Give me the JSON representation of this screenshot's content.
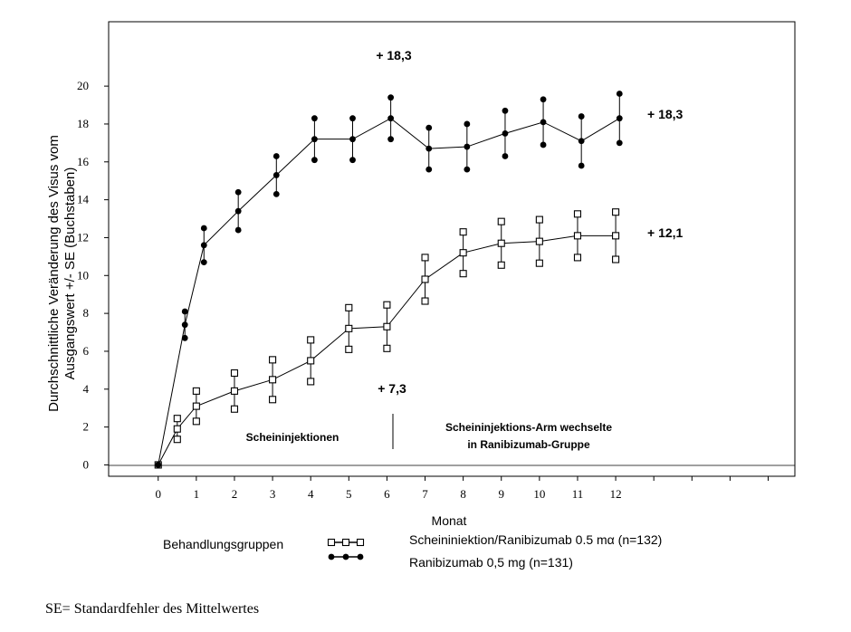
{
  "chart_data": {
    "type": "line",
    "xlabel": "Monat",
    "ylabel_line1": "Durchschnittliche Veränderung des Visus vom",
    "ylabel_line2": "Ausgangswert +/- SE (Buchstaben)",
    "xlim": [
      -1.3,
      16.7
    ],
    "ylim": [
      -0.6,
      23.4
    ],
    "x_ticks": [
      0,
      1,
      2,
      3,
      4,
      5,
      6,
      7,
      8,
      9,
      10,
      11,
      12
    ],
    "x_tick_labels": [
      "0",
      "1",
      "2",
      "3",
      "4",
      "5",
      "6",
      "7",
      "8",
      "9",
      "10",
      "11",
      "12"
    ],
    "extra_tick_marks": [
      13,
      14,
      15,
      16
    ],
    "y_ticks": [
      0,
      2,
      4,
      6,
      8,
      10,
      12,
      14,
      16,
      18,
      20
    ],
    "y_tick_labels": [
      "0",
      "2",
      "4",
      "6",
      "8",
      "10",
      "12",
      "14",
      "16",
      "18",
      "20"
    ],
    "grid": false,
    "legend_position": "bottom",
    "legend_title": "Behandlungsgruppen",
    "series": [
      {
        "name": "Scheininiektion/Ranibizumab 0.5 mα (n=132)",
        "marker": "square",
        "x": [
          0,
          0.5,
          1,
          2,
          3,
          4,
          5,
          6,
          7,
          8,
          9,
          10,
          11,
          12
        ],
        "y": [
          0,
          1.9,
          3.1,
          3.9,
          4.5,
          5.5,
          7.2,
          7.3,
          9.8,
          11.2,
          11.7,
          11.8,
          12.1,
          12.1
        ],
        "err": [
          0,
          0.55,
          0.8,
          0.95,
          1.05,
          1.1,
          1.1,
          1.15,
          1.15,
          1.1,
          1.15,
          1.15,
          1.15,
          1.25
        ]
      },
      {
        "name": "Ranibizumab 0,5 mg (n=131)",
        "marker": "circle",
        "x": [
          0,
          0.7,
          1.2,
          2.1,
          3.1,
          4.1,
          5.1,
          6.1,
          7.1,
          8.1,
          9.1,
          10.1,
          11.1,
          12.1
        ],
        "y": [
          0,
          7.4,
          11.6,
          13.4,
          15.3,
          17.2,
          17.2,
          18.3,
          16.7,
          16.8,
          17.5,
          18.1,
          17.1,
          18.3
        ],
        "err": [
          0,
          0.7,
          0.9,
          1.0,
          1.0,
          1.1,
          1.1,
          1.1,
          1.1,
          1.2,
          1.2,
          1.2,
          1.3,
          1.3
        ]
      }
    ],
    "annotations": {
      "top_value": "+ 18,3",
      "end_value_ranibizumab": "+ 18,3",
      "end_value_sham": "+ 12,1",
      "month6_value": "+ 7,3",
      "phase_left": "Scheininjektionen",
      "phase_right_line1": "Scheininjektions-Arm wechselte",
      "phase_right_line2": "in Ranibizumab-Gruppe"
    },
    "footnote": "SE= Standardfehler des Mittelwertes"
  }
}
